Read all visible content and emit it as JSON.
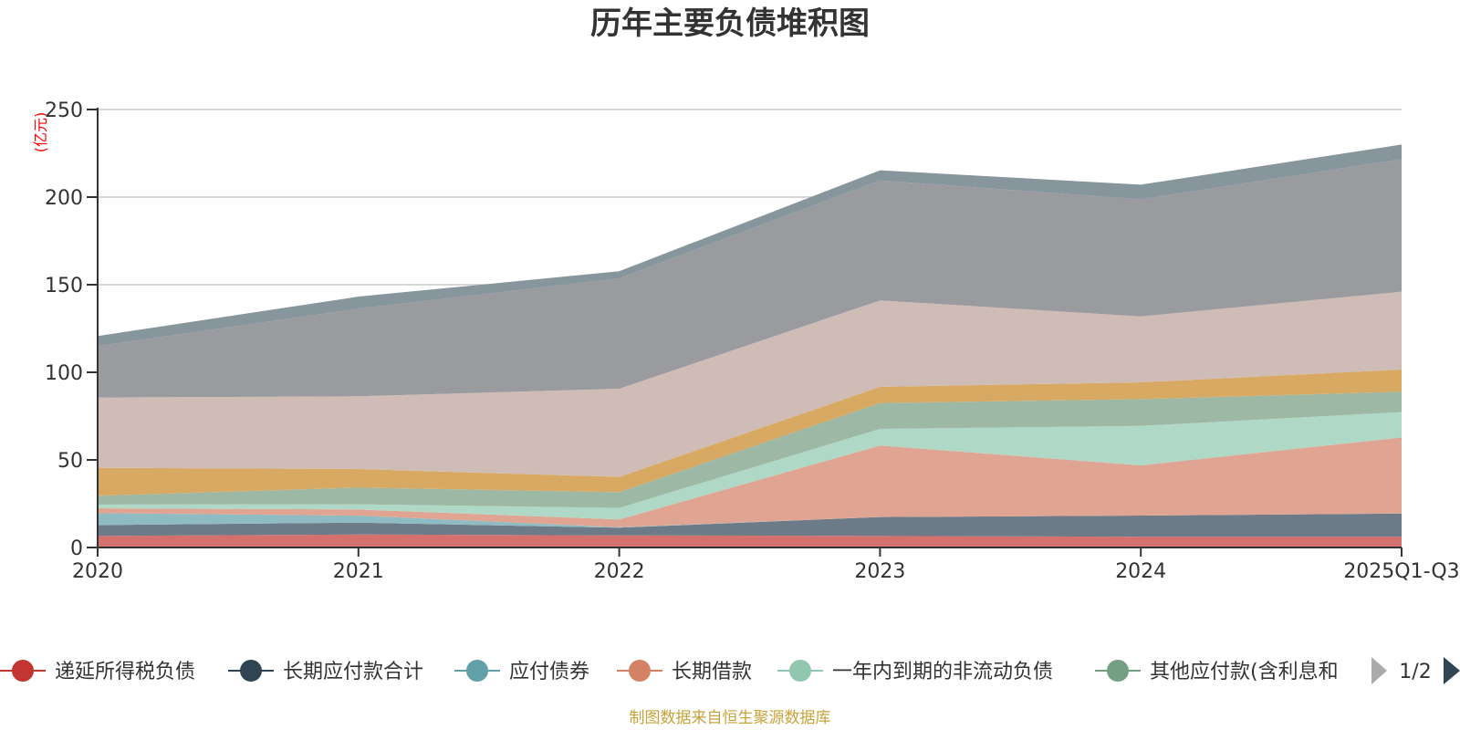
{
  "chart_data": {
    "type": "area",
    "stacked": true,
    "title": "历年主要负债堆积图",
    "ylabel": "(亿元)",
    "xlabel": "",
    "categories": [
      "2020",
      "2021",
      "2022",
      "2023",
      "2024",
      "2025Q1-Q3"
    ],
    "ylim": [
      0,
      250
    ],
    "yticks": [
      0,
      50,
      100,
      150,
      200,
      250
    ],
    "grid": true,
    "legend_position": "bottom",
    "legend_page": "1/2",
    "series": [
      {
        "name": "递延所得税负债",
        "color": "#c23531",
        "fill": "#d4706e",
        "values": [
          6.6,
          7.4,
          6.9,
          6.6,
          6.1,
          6.1
        ]
      },
      {
        "name": "长期应付款合计",
        "color": "#2f4554",
        "fill": "#6d7b88",
        "values": [
          6.2,
          6.8,
          4.4,
          10.8,
          12.1,
          13.3
        ]
      },
      {
        "name": "应付债券",
        "color": "#61a0a8",
        "fill": "#8fbcc2",
        "values": [
          6.8,
          4.0,
          0.3,
          0.0,
          0.0,
          0.0
        ]
      },
      {
        "name": "长期借款",
        "color": "#d48265",
        "fill": "#e0a592",
        "values": [
          2.8,
          3.5,
          4.4,
          40.8,
          28.7,
          43.4
        ]
      },
      {
        "name": "一年内到期的非流动负债",
        "color": "#91c7ae",
        "fill": "#b0d8c7",
        "values": [
          2.1,
          3.0,
          6.6,
          9.5,
          22.5,
          14.5
        ]
      },
      {
        "name": "其他应付款(含利息和",
        "color": "#749f83",
        "fill": "#9db8a5",
        "values": [
          5.0,
          9.5,
          9.0,
          14.8,
          15.3,
          11.6
        ]
      },
      {
        "name": "",
        "color": "#ca8622",
        "fill": "#d8a962",
        "values": [
          16.0,
          10.6,
          8.7,
          9.2,
          9.6,
          12.7
        ]
      },
      {
        "name": "",
        "color": "#bda29a",
        "fill": "#d0bcb6",
        "values": [
          40.1,
          41.5,
          50.3,
          49.3,
          37.6,
          44.4
        ]
      },
      {
        "name": "",
        "color": "#6e7074",
        "fill": "#9a9b9e",
        "values": [
          29.4,
          50.0,
          63.0,
          68.5,
          66.8,
          75.7
        ]
      },
      {
        "name": "",
        "color": "#546570",
        "fill": "#87959c",
        "values": [
          5.7,
          6.9,
          4.1,
          5.8,
          8.4,
          8.3
        ]
      }
    ],
    "footer": "制图数据来自恒生聚源数据库"
  },
  "legend_nav": {
    "page_label": "1/2",
    "prev_icon": "triangle-left-icon",
    "next_icon": "triangle-right-icon",
    "prev_color": "#aaaaaa",
    "next_color": "#2f4554"
  }
}
